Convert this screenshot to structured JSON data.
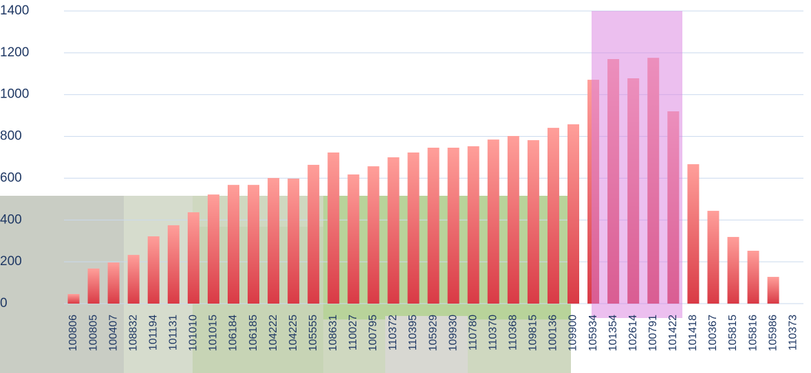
{
  "chart_data": {
    "type": "bar",
    "categories": [
      "100806",
      "100805",
      "100407",
      "108832",
      "101194",
      "101131",
      "101010",
      "101015",
      "106184",
      "106185",
      "104222",
      "104225",
      "105555",
      "108631",
      "110027",
      "100795",
      "110372",
      "110395",
      "105929",
      "109930",
      "110780",
      "110370",
      "110368",
      "109815",
      "100136",
      "109900",
      "105934",
      "101354",
      "102614",
      "100791",
      "101422",
      "101418",
      "100367",
      "105815",
      "105816",
      "105986",
      "110373"
    ],
    "values": [
      46,
      168,
      197,
      233,
      322,
      375,
      437,
      522,
      568,
      568,
      601,
      598,
      664,
      723,
      618,
      657,
      700,
      723,
      746,
      746,
      753,
      785,
      802,
      782,
      841,
      858,
      1071,
      1170,
      1078,
      1176,
      920,
      667,
      444,
      319,
      253,
      128,
      null
    ],
    "color": "#d93a45",
    "ylim": [
      0,
      1400
    ],
    "yticks": [
      0,
      200,
      400,
      600,
      800,
      1000,
      1200,
      1400
    ],
    "grid": true
  }
}
